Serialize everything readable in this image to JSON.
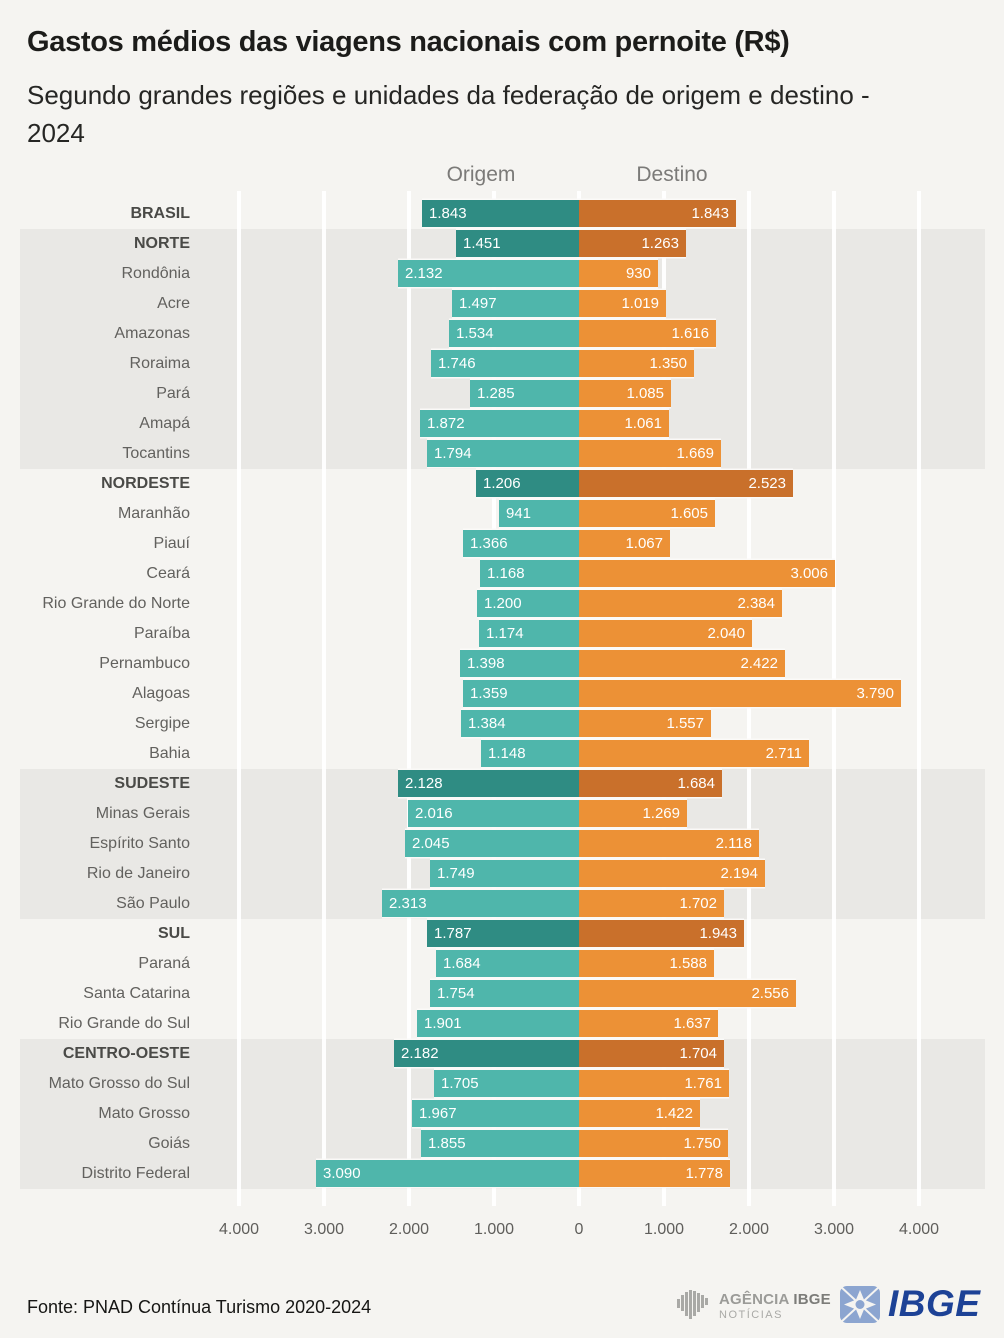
{
  "header": {
    "title": "Gastos médios das viagens nacionais com pernoite (R$)",
    "subtitle": "Segundo grandes regiões e unidades da federação de origem e destino - 2024"
  },
  "chart_data": {
    "type": "bar",
    "variant": "diverging-horizontal",
    "col_origem": "Origem",
    "col_destino": "Destino",
    "unit": "R$",
    "axis_max": 4000,
    "axis_ticks": [
      "4.000",
      "3.000",
      "2.000",
      "1.000",
      "0",
      "1.000",
      "2.000",
      "3.000",
      "4.000"
    ],
    "colors": {
      "origem_region": "#2F8C83",
      "origem_state": "#4FB6AB",
      "destino_region": "#C9702B",
      "destino_state": "#EC9136",
      "band": "#e9e8e5",
      "background": "#f5f4f1"
    },
    "rows": [
      {
        "label": "BRASIL",
        "region": true,
        "band": false,
        "origem": 1843,
        "origem_label": "1.843",
        "destino": 1843,
        "destino_label": "1.843"
      },
      {
        "label": "NORTE",
        "region": true,
        "band": true,
        "origem": 1451,
        "origem_label": "1.451",
        "destino": 1263,
        "destino_label": "1.263"
      },
      {
        "label": "Rondônia",
        "region": false,
        "band": true,
        "origem": 2132,
        "origem_label": "2.132",
        "destino": 930,
        "destino_label": "930"
      },
      {
        "label": "Acre",
        "region": false,
        "band": true,
        "origem": 1497,
        "origem_label": "1.497",
        "destino": 1019,
        "destino_label": "1.019"
      },
      {
        "label": "Amazonas",
        "region": false,
        "band": true,
        "origem": 1534,
        "origem_label": "1.534",
        "destino": 1616,
        "destino_label": "1.616"
      },
      {
        "label": "Roraima",
        "region": false,
        "band": true,
        "origem": 1746,
        "origem_label": "1.746",
        "destino": 1350,
        "destino_label": "1.350"
      },
      {
        "label": "Pará",
        "region": false,
        "band": true,
        "origem": 1285,
        "origem_label": "1.285",
        "destino": 1085,
        "destino_label": "1.085"
      },
      {
        "label": "Amapá",
        "region": false,
        "band": true,
        "origem": 1872,
        "origem_label": "1.872",
        "destino": 1061,
        "destino_label": "1.061"
      },
      {
        "label": "Tocantins",
        "region": false,
        "band": true,
        "origem": 1794,
        "origem_label": "1.794",
        "destino": 1669,
        "destino_label": "1.669"
      },
      {
        "label": "NORDESTE",
        "region": true,
        "band": false,
        "origem": 1206,
        "origem_label": "1.206",
        "destino": 2523,
        "destino_label": "2.523"
      },
      {
        "label": "Maranhão",
        "region": false,
        "band": false,
        "origem": 941,
        "origem_label": "941",
        "destino": 1605,
        "destino_label": "1.605"
      },
      {
        "label": "Piauí",
        "region": false,
        "band": false,
        "origem": 1366,
        "origem_label": "1.366",
        "destino": 1067,
        "destino_label": "1.067"
      },
      {
        "label": "Ceará",
        "region": false,
        "band": false,
        "origem": 1168,
        "origem_label": "1.168",
        "destino": 3006,
        "destino_label": "3.006"
      },
      {
        "label": "Rio Grande do Norte",
        "region": false,
        "band": false,
        "origem": 1200,
        "origem_label": "1.200",
        "destino": 2384,
        "destino_label": "2.384"
      },
      {
        "label": "Paraíba",
        "region": false,
        "band": false,
        "origem": 1174,
        "origem_label": "1.174",
        "destino": 2040,
        "destino_label": "2.040"
      },
      {
        "label": "Pernambuco",
        "region": false,
        "band": false,
        "origem": 1398,
        "origem_label": "1.398",
        "destino": 2422,
        "destino_label": "2.422"
      },
      {
        "label": "Alagoas",
        "region": false,
        "band": false,
        "origem": 1359,
        "origem_label": "1.359",
        "destino": 3790,
        "destino_label": "3.790"
      },
      {
        "label": "Sergipe",
        "region": false,
        "band": false,
        "origem": 1384,
        "origem_label": "1.384",
        "destino": 1557,
        "destino_label": "1.557"
      },
      {
        "label": "Bahia",
        "region": false,
        "band": false,
        "origem": 1148,
        "origem_label": "1.148",
        "destino": 2711,
        "destino_label": "2.711"
      },
      {
        "label": "SUDESTE",
        "region": true,
        "band": true,
        "origem": 2128,
        "origem_label": "2.128",
        "destino": 1684,
        "destino_label": "1.684"
      },
      {
        "label": "Minas Gerais",
        "region": false,
        "band": true,
        "origem": 2016,
        "origem_label": "2.016",
        "destino": 1269,
        "destino_label": "1.269"
      },
      {
        "label": "Espírito Santo",
        "region": false,
        "band": true,
        "origem": 2045,
        "origem_label": "2.045",
        "destino": 2118,
        "destino_label": "2.118"
      },
      {
        "label": "Rio de Janeiro",
        "region": false,
        "band": true,
        "origem": 1749,
        "origem_label": "1.749",
        "destino": 2194,
        "destino_label": "2.194"
      },
      {
        "label": "São Paulo",
        "region": false,
        "band": true,
        "origem": 2313,
        "origem_label": "2.313",
        "destino": 1702,
        "destino_label": "1.702"
      },
      {
        "label": "SUL",
        "region": true,
        "band": false,
        "origem": 1787,
        "origem_label": "1.787",
        "destino": 1943,
        "destino_label": "1.943"
      },
      {
        "label": "Paraná",
        "region": false,
        "band": false,
        "origem": 1684,
        "origem_label": "1.684",
        "destino": 1588,
        "destino_label": "1.588"
      },
      {
        "label": "Santa Catarina",
        "region": false,
        "band": false,
        "origem": 1754,
        "origem_label": "1.754",
        "destino": 2556,
        "destino_label": "2.556"
      },
      {
        "label": "Rio Grande do Sul",
        "region": false,
        "band": false,
        "origem": 1901,
        "origem_label": "1.901",
        "destino": 1637,
        "destino_label": "1.637"
      },
      {
        "label": "CENTRO-OESTE",
        "region": true,
        "band": true,
        "origem": 2182,
        "origem_label": "2.182",
        "destino": 1704,
        "destino_label": "1.704"
      },
      {
        "label": "Mato Grosso do Sul",
        "region": false,
        "band": true,
        "origem": 1705,
        "origem_label": "1.705",
        "destino": 1761,
        "destino_label": "1.761"
      },
      {
        "label": "Mato Grosso",
        "region": false,
        "band": true,
        "origem": 1967,
        "origem_label": "1.967",
        "destino": 1422,
        "destino_label": "1.422"
      },
      {
        "label": "Goiás",
        "region": false,
        "band": true,
        "origem": 1855,
        "origem_label": "1.855",
        "destino": 1750,
        "destino_label": "1.750"
      },
      {
        "label": "Distrito Federal",
        "region": false,
        "band": true,
        "origem": 3090,
        "origem_label": "3.090",
        "destino": 1778,
        "destino_label": "1.778"
      }
    ]
  },
  "footer": {
    "source": "Fonte: PNAD Contínua Turismo 2020-2024",
    "agency_logo_line1_a": "AGÊNCIA",
    "agency_logo_line1_b": "IBGE",
    "agency_logo_line2": "NOTÍCIAS",
    "ibge_logo_text": "IBGE"
  }
}
